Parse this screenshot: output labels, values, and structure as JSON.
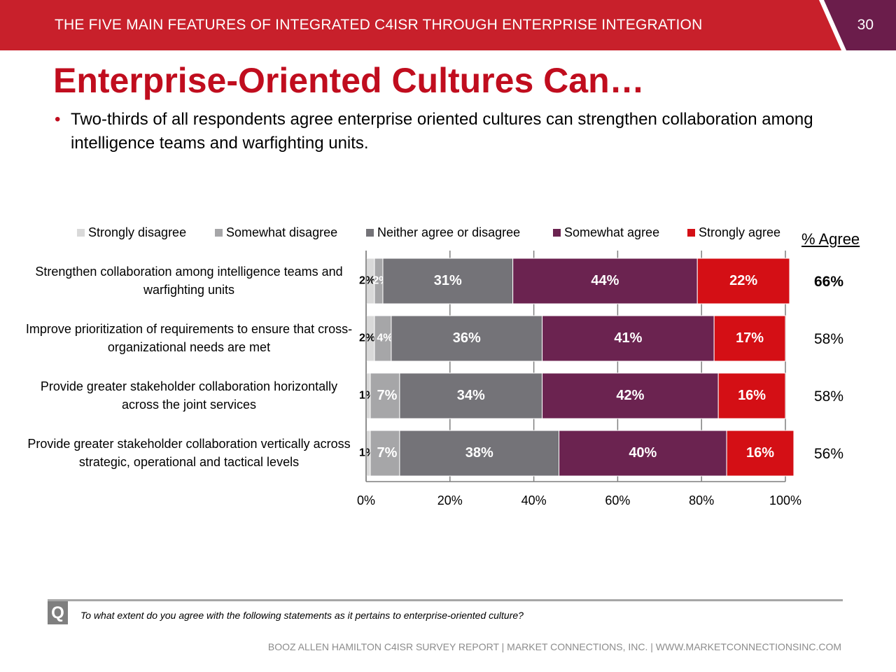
{
  "header": {
    "title": "THE FIVE MAIN FEATURES OF INTEGRATED C4ISR THROUGH ENTERPRISE INTEGRATION",
    "page_number": "30"
  },
  "slide": {
    "title": "Enterprise-Oriented Cultures Can…",
    "bullet_symbol": "•",
    "bullet": "Two-thirds of all respondents agree enterprise oriented cultures can strengthen collaboration among intelligence teams and warfighting units."
  },
  "agree_header": "% Agree",
  "question": {
    "icon": "Q",
    "text": "To what extent do you agree with the following statements as it pertains to enterprise-oriented culture?"
  },
  "footer": "BOOZ ALLEN HAMILTON C4ISR SURVEY REPORT   |   MARKET CONNECTIONS, INC.  |  WWW.MARKETCONNECTIONSINC.COM",
  "colors": {
    "header_red": "#c8202b",
    "title_red": "#c00d1e",
    "page_tab": "#6b1d4b"
  },
  "chart_data": {
    "type": "bar",
    "orientation": "horizontal",
    "stacked": true,
    "xlim": [
      0,
      100
    ],
    "x_ticks": [
      "0%",
      "20%",
      "40%",
      "60%",
      "80%",
      "100%"
    ],
    "grid": true,
    "legend_position": "top",
    "categories": [
      "Strengthen collaboration among intelligence teams and warfighting units",
      "Improve prioritization of requirements to ensure that cross-organizational needs are met",
      "Provide greater stakeholder collaboration horizontally across the joint services",
      "Provide greater stakeholder collaboration vertically across strategic, operational and tactical levels"
    ],
    "series": [
      {
        "name": "Strongly disagree",
        "color": "#d9d9d9",
        "values": [
          2,
          2,
          1,
          1
        ],
        "labels": [
          "2%",
          "2%",
          "1%",
          "1%"
        ]
      },
      {
        "name": "Somewhat disagree",
        "color": "#a6a6a8",
        "values": [
          2,
          4,
          7,
          7
        ],
        "labels": [
          "2%",
          "4%",
          "7%",
          "7%"
        ]
      },
      {
        "name": "Neither agree or disagree",
        "color": "#747378",
        "values": [
          31,
          36,
          34,
          38
        ],
        "labels": [
          "31%",
          "36%",
          "34%",
          "38%"
        ]
      },
      {
        "name": "Somewhat agree",
        "color": "#6b2350",
        "values": [
          44,
          41,
          42,
          40
        ],
        "labels": [
          "44%",
          "41%",
          "42%",
          "40%"
        ]
      },
      {
        "name": "Strongly agree",
        "color": "#d40f15",
        "values": [
          22,
          17,
          16,
          16
        ],
        "labels": [
          "22%",
          "17%",
          "16%",
          "16%"
        ]
      }
    ],
    "percent_agree": [
      "66%",
      "58%",
      "58%",
      "56%"
    ]
  }
}
